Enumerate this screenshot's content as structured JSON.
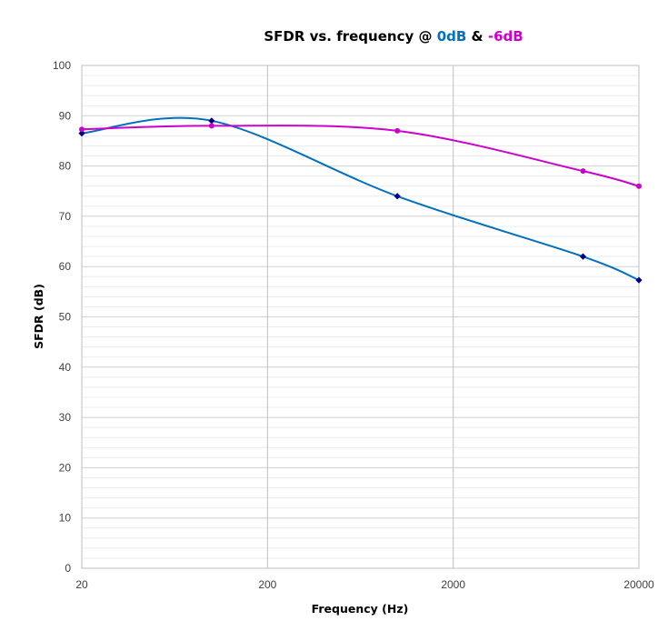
{
  "chart_data": {
    "type": "line",
    "title": {
      "prefix": "SFDR vs. frequency @ ",
      "part1": "0dB",
      "sep": " & ",
      "part2": "-6dB"
    },
    "xlabel": "Frequency (Hz)",
    "ylabel": "SFDR (dB)",
    "x_scale": "log",
    "xlim": [
      20,
      20000
    ],
    "ylim": [
      0,
      100
    ],
    "x_ticks": [
      20,
      200,
      2000,
      20000
    ],
    "x_tick_labels": [
      "20",
      "200",
      "2000",
      "20000"
    ],
    "y_ticks": [
      0,
      10,
      20,
      30,
      40,
      50,
      60,
      70,
      80,
      90,
      100
    ],
    "y_tick_labels": [
      "0",
      "10",
      "20",
      "30",
      "40",
      "50",
      "60",
      "70",
      "80",
      "90",
      "100"
    ],
    "grid": true,
    "series": [
      {
        "label": "0dB",
        "color": "#0070C0",
        "marker_color": "#00008B",
        "marker": "diamond",
        "x": [
          20,
          100,
          1000,
          10000,
          20000
        ],
        "y": [
          86.5,
          89.0,
          74.0,
          62.0,
          57.3
        ]
      },
      {
        "label": "-6dB",
        "color": "#CC00CC",
        "marker_color": "#CC00CC",
        "marker": "circle",
        "x": [
          20,
          100,
          1000,
          10000,
          20000
        ],
        "y": [
          87.3,
          88.0,
          87.0,
          79.0,
          76.0
        ]
      }
    ]
  }
}
